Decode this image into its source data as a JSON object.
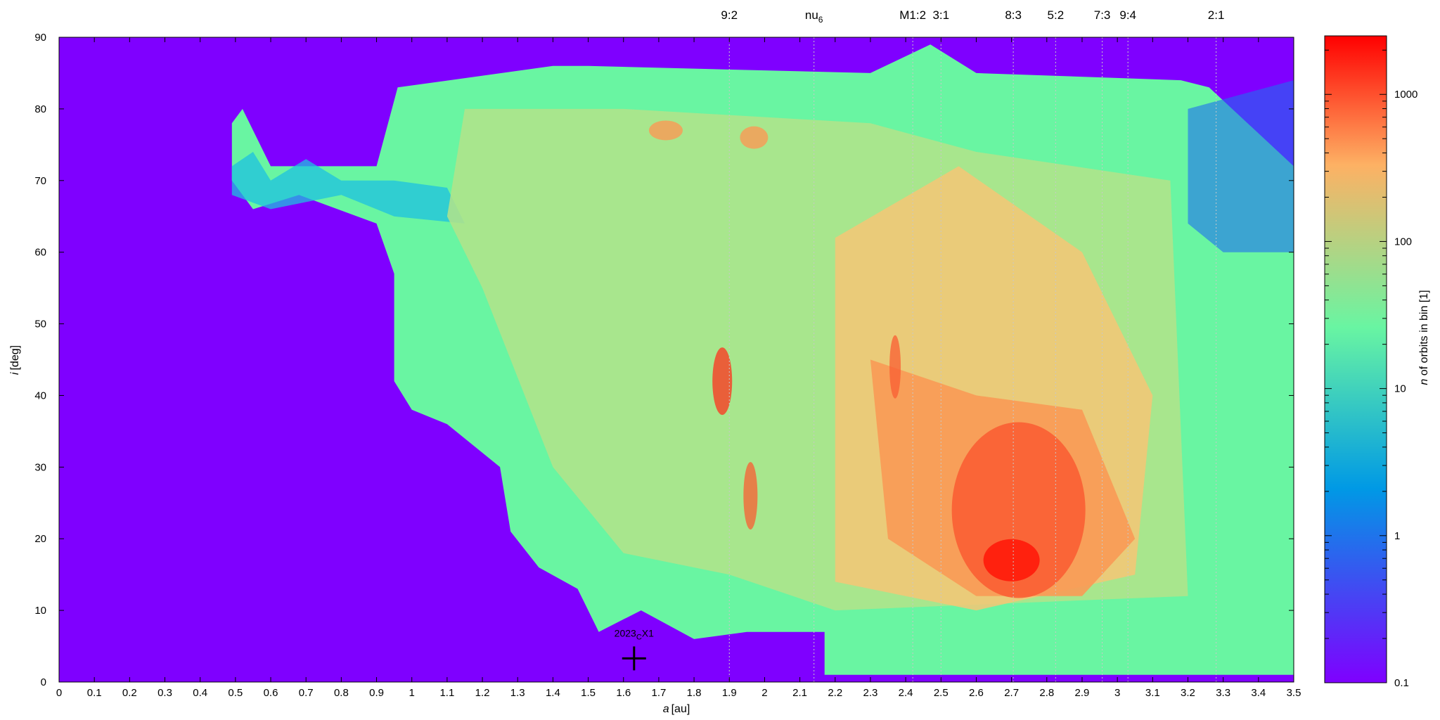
{
  "chart_data": {
    "type": "heatmap",
    "xlabel": {
      "var": "a",
      "unit": "[au]"
    },
    "ylabel": {
      "var": "i",
      "unit": "[deg]"
    },
    "xlim": [
      0,
      3.5
    ],
    "ylim": [
      0,
      90
    ],
    "xticks": [
      "0",
      "0.1",
      "0.2",
      "0.3",
      "0.4",
      "0.5",
      "0.6",
      "0.7",
      "0.8",
      "0.9",
      "1",
      "1.1",
      "1.2",
      "1.3",
      "1.4",
      "1.5",
      "1.6",
      "1.7",
      "1.8",
      "1.9",
      "2",
      "2.1",
      "2.2",
      "2.3",
      "2.4",
      "2.5",
      "2.6",
      "2.7",
      "2.8",
      "2.9",
      "3",
      "3.1",
      "3.2",
      "3.3",
      "3.4",
      "3.5"
    ],
    "yticks": [
      "0",
      "10",
      "20",
      "30",
      "40",
      "50",
      "60",
      "70",
      "80",
      "90"
    ],
    "colorbar": {
      "label": {
        "var": "n",
        "rest": " of orbits in bin [1]"
      },
      "scale": "log",
      "range": [
        0.1,
        2500
      ],
      "ticks": [
        {
          "value": 0.1,
          "label": "0.1"
        },
        {
          "value": 1,
          "label": "1"
        },
        {
          "value": 10,
          "label": "10"
        },
        {
          "value": 100,
          "label": "100"
        },
        {
          "value": 1000,
          "label": "1000"
        }
      ],
      "colors": [
        "#7f00ff",
        "#0099e5",
        "#69f5a2",
        "#fdb164",
        "#ff0000"
      ]
    },
    "resonances": [
      {
        "label": "9:2",
        "a": 1.9
      },
      {
        "label": "nu",
        "sub": "6",
        "a": 2.14
      },
      {
        "label": "M1:2",
        "a": 2.42
      },
      {
        "label": "3:1",
        "a": 2.5
      },
      {
        "label": "8:3",
        "a": 2.705
      },
      {
        "label": "5:2",
        "a": 2.825
      },
      {
        "label": "7:3",
        "a": 2.957
      },
      {
        "label": "9:4",
        "a": 3.03
      },
      {
        "label": "2:1",
        "a": 3.28
      }
    ],
    "object": {
      "name": "2023",
      "sub": "C",
      "suffix": "X1",
      "a": 1.63,
      "i": 3.3
    }
  }
}
